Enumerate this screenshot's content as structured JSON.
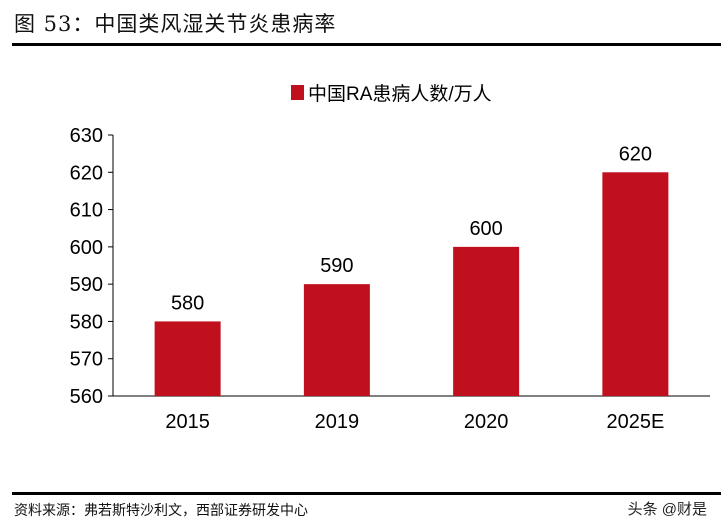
{
  "title": "图 53：中国类风湿关节炎患病率",
  "source": "资料来源：弗若斯特沙利文，西部证券研发中心",
  "watermark": "头条 @财是",
  "chart_data": {
    "type": "bar",
    "categories": [
      "2015",
      "2019",
      "2020",
      "2025E"
    ],
    "series": [
      {
        "name": "中国RA患病人数/万人",
        "values": [
          580,
          590,
          600,
          620
        ],
        "color": "#C0101E"
      }
    ],
    "ylim": [
      560,
      630
    ],
    "yticks": [
      560,
      570,
      580,
      590,
      600,
      610,
      620,
      630
    ],
    "data_labels": true,
    "grid": false,
    "legend": "top-center"
  }
}
